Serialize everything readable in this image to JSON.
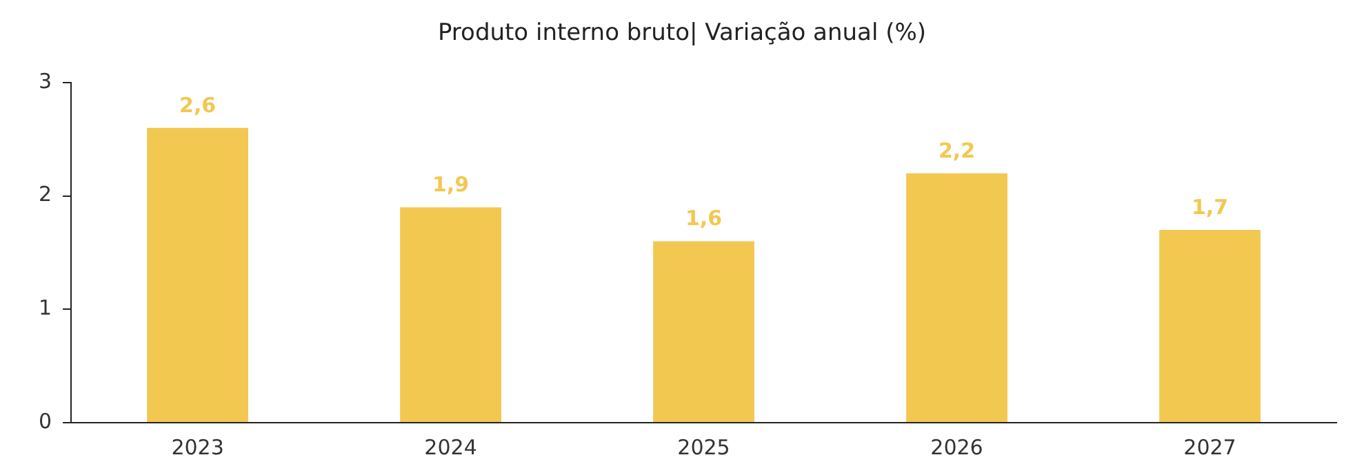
{
  "chart_data": {
    "type": "bar",
    "title": "Produto interno bruto| Variação anual (%)",
    "categories": [
      "2023",
      "2024",
      "2025",
      "2026",
      "2027"
    ],
    "values": [
      2.6,
      1.9,
      1.6,
      2.2,
      1.7
    ],
    "value_labels": [
      "2,6",
      "1,9",
      "1,6",
      "2,2",
      "1,7"
    ],
    "color": "#f2c851",
    "ylim": [
      0,
      3
    ],
    "yticks": [
      0,
      1,
      2,
      3
    ],
    "grid": false,
    "legend": false
  }
}
